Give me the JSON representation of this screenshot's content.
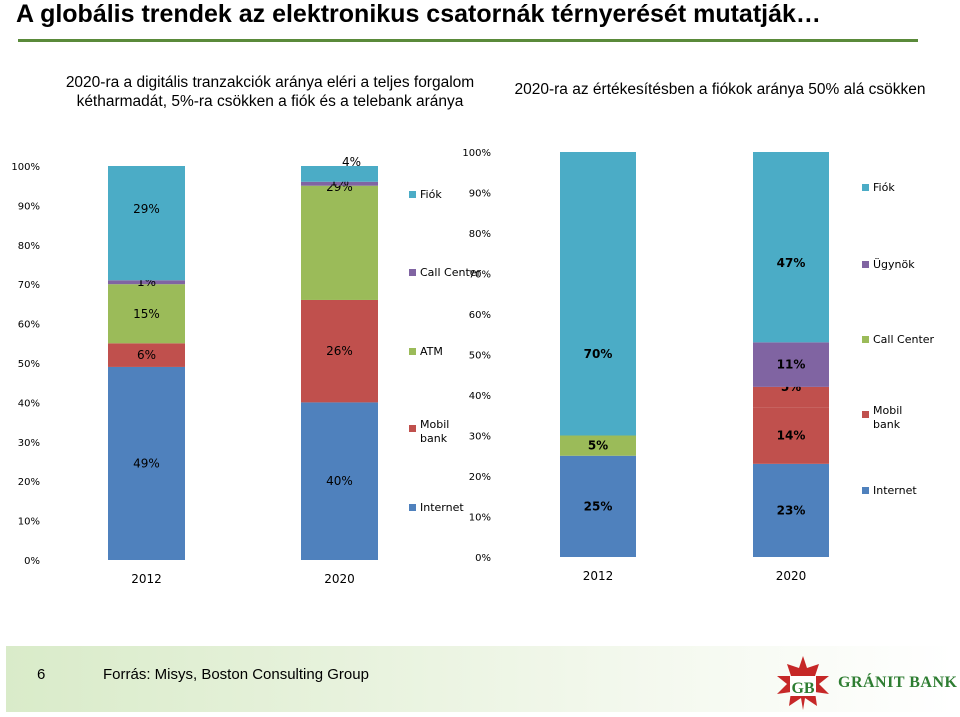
{
  "page": {
    "title": "A globális trendek az elektronikus csatornák térnyerését mutatják…",
    "subtitle_left": "2020-ra a digitális tranzakciók aránya eléri a teljes forgalom kétharmadát, 5%-ra csökken a fiók és a telebank aránya",
    "subtitle_right": "2020-ra az értékesítésben a fiókok aránya 50% alá csökken",
    "page_number": "6",
    "source": "Forrás: Misys, Boston Consulting Group",
    "logo_text": "GRÁNIT BANK"
  },
  "colors": {
    "blue": "#4f81bd",
    "red": "#c0504d",
    "green": "#9bbb59",
    "purple": "#8064a2",
    "teal": "#4bacc6",
    "accent_line": "#5a8a3a",
    "logo_red": "#c62828",
    "logo_green": "#2e7d32"
  },
  "chart_data": [
    {
      "type": "bar",
      "stacked": true,
      "categories": [
        "2012",
        "2020"
      ],
      "series": [
        {
          "name": "Internet",
          "values": [
            49,
            40
          ],
          "labels": [
            "49%",
            "40%"
          ]
        },
        {
          "name": "Mobil bank",
          "values": [
            0,
            0
          ],
          "labels": [
            "",
            ""
          ]
        },
        {
          "name": "ATM",
          "values": [
            6,
            26
          ],
          "labels": [
            "6%",
            "26%"
          ]
        },
        {
          "name": "Call Center",
          "values": [
            15,
            29
          ],
          "labels": [
            "15%",
            "29%"
          ]
        },
        {
          "name": "",
          "values": [
            1,
            1
          ],
          "labels": [
            "1%",
            "1%"
          ]
        },
        {
          "name": "Fiók",
          "values": [
            29,
            4
          ],
          "labels": [
            "29%",
            "4%"
          ]
        }
      ],
      "ylim": [
        0,
        100
      ],
      "yticks": [
        "0%",
        "10%",
        "20%",
        "30%",
        "40%",
        "50%",
        "60%",
        "70%",
        "80%",
        "90%",
        "100%"
      ],
      "legend_position": "right",
      "legend": [
        "Fiók",
        "Call Center",
        "ATM",
        "Mobil bank",
        "Internet"
      ]
    },
    {
      "type": "bar",
      "stacked": true,
      "categories": [
        "2012",
        "2020"
      ],
      "series": [
        {
          "name": "Internet",
          "values": [
            25,
            23
          ],
          "labels": [
            "25%",
            "23%"
          ]
        },
        {
          "name": "Mobil bank",
          "values": [
            0,
            14
          ],
          "labels": [
            "",
            "14%"
          ]
        },
        {
          "name": "Call Center",
          "values": [
            5,
            0
          ],
          "labels": [
            "5%",
            ""
          ]
        },
        {
          "name": "Ügynök",
          "values": [
            0,
            5
          ],
          "labels": [
            "",
            "5%"
          ]
        },
        {
          "name": "Call Center",
          "values": [
            0,
            11
          ],
          "labels": [
            "",
            "11%"
          ]
        },
        {
          "name": "Fiók",
          "values": [
            70,
            47
          ],
          "labels": [
            "70%",
            "47%"
          ]
        }
      ],
      "ylim": [
        0,
        100
      ],
      "yticks": [
        "0%",
        "10%",
        "20%",
        "30%",
        "40%",
        "50%",
        "60%",
        "70%",
        "80%",
        "90%",
        "100%"
      ],
      "legend_position": "right",
      "legend": [
        "Fiók",
        "Ügynök",
        "Call Center",
        "Mobil bank",
        "Internet"
      ]
    }
  ]
}
